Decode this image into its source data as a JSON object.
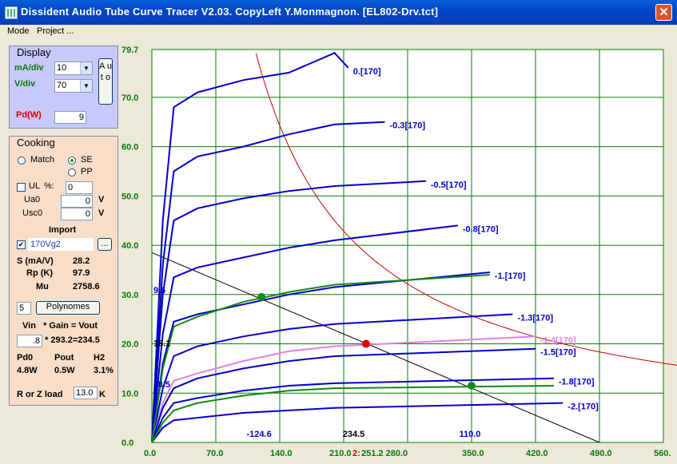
{
  "window": {
    "title": "Dissident Audio Tube Curve Tracer V2.03. CopyLeft Y.Monmagnon. [EL802-Drv.tct]",
    "close_glyph": "✕",
    "icon": "app-icon"
  },
  "menu": [
    {
      "label": "Mode"
    },
    {
      "label": "Project ..."
    }
  ],
  "display": {
    "title": "Display",
    "ma_div_label": "mA/div",
    "ma_div_value": "10",
    "v_div_label": "V/div",
    "v_div_value": "70",
    "auto_label": "A u t o",
    "pd_label": "Pd(W)",
    "pd_value": "9",
    "color_ma": "#0a7a0a",
    "color_pd": "#e00000"
  },
  "cooking": {
    "title": "Cooking",
    "match_label": "Match",
    "se_label": "SE",
    "pp_label": "PP",
    "ul_label": "UL",
    "ul_pct_label": "%:",
    "ul_value": "0",
    "ua0_label": "Ua0",
    "ua0_value": "0",
    "ua0_unit": "V",
    "usc0_label": "Usc0",
    "usc0_value": "0",
    "usc0_unit": "V",
    "import_label": "Import",
    "import_file": "170Vg2",
    "browse_label": "...",
    "s_label": "S (mA/V)",
    "s_value": "28.2",
    "rp_label": "Rp (K)",
    "rp_value": "97.9",
    "mu_label": "Mu",
    "mu_value": "2758.6",
    "poly_count": "5",
    "poly_button": "Polynomes",
    "vin_header": "Vin   * Gain = Vout",
    "vin_value": ".8",
    "gain_text": "* 293.2=234.5",
    "pd0_label": "Pd0",
    "pout_label": "Pout",
    "h2_label": "H2",
    "pd0_value": "4.8W",
    "pout_value": "0.5W",
    "h2_value": "3.1%",
    "rload_label": "R or Z load",
    "rload_value": "13.0",
    "rload_unit": "K"
  },
  "chart_data": {
    "type": "line",
    "x_axis": {
      "range": [
        0,
        560
      ],
      "ticks": [
        "0.0",
        "70.0",
        "140.0",
        "210.0",
        "280.0",
        "350.0",
        "420.0",
        "490.0",
        "560."
      ]
    },
    "y_axis": {
      "range": [
        0,
        79.7
      ],
      "ticks": [
        "0.0",
        "10.0",
        "20.0",
        "30.0",
        "40.0",
        "50.0",
        "60.0",
        "70.0",
        "79.7"
      ]
    },
    "grid": true,
    "colors": {
      "axis_text": "#0a7a0a",
      "grid": "#0a7a0a",
      "curve": "#0000c8",
      "pd_hyperbola": "#c80000",
      "load_line": "#000000",
      "highlight": "#e080e0",
      "green_curve": "#138a13",
      "red_tick": "#e00000"
    },
    "series": [
      {
        "name": "0.[170]",
        "x": [
          0,
          12,
          24,
          50,
          100,
          150,
          200,
          215
        ],
        "y": [
          0,
          45,
          68,
          71,
          73.5,
          75,
          79,
          76
        ]
      },
      {
        "name": "-0.3[170]",
        "x": [
          0,
          12,
          24,
          50,
          100,
          150,
          200,
          255
        ],
        "y": [
          0,
          36,
          55,
          58,
          60,
          62.5,
          64.5,
          65
        ]
      },
      {
        "name": "-0.5[170]",
        "x": [
          0,
          12,
          24,
          50,
          100,
          150,
          200,
          300
        ],
        "y": [
          0,
          30,
          45,
          47.5,
          49.5,
          51,
          52,
          53
        ]
      },
      {
        "name": "-0.8[170]",
        "x": [
          0,
          12,
          24,
          50,
          100,
          150,
          200,
          335
        ],
        "y": [
          0,
          22,
          33.5,
          35.5,
          37.5,
          39.5,
          41,
          44
        ]
      },
      {
        "name": "-1.[170]",
        "x": [
          0,
          12,
          24,
          50,
          100,
          150,
          200,
          370
        ],
        "y": [
          0,
          16,
          24.5,
          26,
          28,
          30,
          31.5,
          34.5
        ]
      },
      {
        "name": "-1.3[170]",
        "x": [
          0,
          12,
          24,
          50,
          100,
          150,
          200,
          395
        ],
        "y": [
          0,
          11,
          17.5,
          19.5,
          21.5,
          23,
          24,
          26
        ]
      },
      {
        "name": "-1.4[170]",
        "x": [
          0,
          12,
          24,
          50,
          100,
          150,
          200,
          420
        ],
        "y": [
          0,
          8,
          12.5,
          14,
          16.5,
          18.5,
          19.5,
          21.5
        ]
      },
      {
        "name": "-1.5[170]",
        "x": [
          0,
          12,
          24,
          50,
          100,
          150,
          200,
          420
        ],
        "y": [
          0,
          7,
          11,
          13,
          15,
          16.5,
          17.5,
          19
        ]
      },
      {
        "name": "-1.8[170]",
        "x": [
          0,
          12,
          24,
          50,
          100,
          150,
          200,
          440
        ],
        "y": [
          0,
          5,
          8,
          9,
          10.5,
          11.5,
          12,
          13
        ]
      },
      {
        "name": "-2.[170]",
        "x": [
          0,
          12,
          24,
          50,
          100,
          150,
          200,
          450
        ],
        "y": [
          0,
          3,
          4.5,
          5,
          6,
          6.5,
          7,
          8
        ]
      }
    ],
    "pd_hyperbola": {
      "pd_w": 9
    },
    "load_line": {
      "x": [
        0,
        490
      ],
      "y": [
        38.5,
        0
      ]
    },
    "operating_point": {
      "x": 234.5,
      "y": 20
    },
    "annotations": [
      "9.6",
      "18.1",
      "-8.5",
      "-124.6",
      "234.5",
      "110.0"
    ],
    "bottom_ticks": {
      "left": "210.0",
      "red": "2:",
      "right": "251.2 280.0"
    }
  }
}
